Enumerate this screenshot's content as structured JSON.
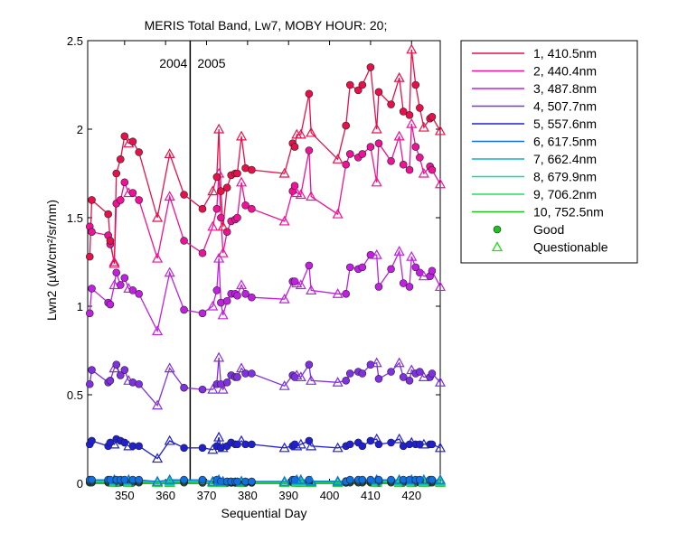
{
  "chart_data": {
    "type": "line",
    "title": "MERIS Total Band, Lw7, MOBY HOUR: 20;",
    "xlabel": "Sequential Day",
    "ylabel": "Lwn2 (µW/cm²/sr/nm)",
    "xlim": [
      341,
      427
    ],
    "ylim": [
      0,
      2.5
    ],
    "xticks": [
      350,
      360,
      370,
      380,
      390,
      400,
      410,
      420
    ],
    "yticks": [
      0,
      0.5,
      1,
      1.5,
      2,
      2.5
    ],
    "grid": false,
    "legend_position": "outside-right",
    "year_divider": {
      "x": 366,
      "labels": [
        "2004",
        "2005"
      ]
    },
    "x": [
      341.5,
      342,
      346,
      346.5,
      347.5,
      348,
      349,
      350,
      351,
      352,
      353.5,
      358,
      361,
      364.5,
      369,
      371.5,
      372.5,
      373,
      373.5,
      374,
      375,
      376,
      377,
      377.5,
      378.5,
      379.5,
      381,
      389,
      391,
      391.5,
      392,
      393,
      395,
      395.5,
      402,
      404,
      405,
      407,
      408,
      410,
      411.5,
      412,
      415,
      417,
      418,
      419.5,
      420,
      421,
      422,
      423,
      424.5,
      425,
      427
    ],
    "status": [
      "g",
      "g",
      "g",
      "g",
      "q",
      "g",
      "g",
      "g",
      "q",
      "g",
      "g",
      "q",
      "q",
      "g",
      "g",
      "q",
      "g",
      "q",
      "g",
      "q",
      "g",
      "g",
      "g",
      "g",
      "q",
      "g",
      "g",
      "q",
      "g",
      "g",
      "q",
      "q",
      "g",
      "q",
      "q",
      "g",
      "g",
      "g",
      "g",
      "g",
      "q",
      "g",
      "g",
      "q",
      "g",
      "g",
      "q",
      "g",
      "g",
      "q",
      "g",
      "g",
      "q"
    ],
    "series": [
      {
        "name": "1, 410.5nm",
        "color": "#e8104a",
        "values": [
          1.28,
          1.6,
          1.52,
          1.37,
          1.24,
          1.75,
          1.83,
          1.96,
          1.92,
          1.93,
          1.87,
          1.5,
          1.86,
          1.63,
          1.55,
          1.65,
          1.73,
          2.0,
          1.65,
          1.45,
          1.67,
          1.74,
          1.75,
          1.75,
          1.96,
          1.78,
          1.77,
          1.75,
          1.92,
          1.9,
          1.97,
          1.97,
          2.2,
          1.98,
          1.83,
          2.02,
          2.25,
          2.22,
          2.25,
          2.35,
          2.0,
          2.21,
          2.14,
          2.29,
          2.1,
          2.08,
          2.45,
          2.25,
          2.12,
          2.01,
          2.06,
          2.07,
          1.99
        ]
      },
      {
        "name": "2, 440.4nm",
        "color": "#f0109a",
        "values": [
          1.45,
          1.42,
          1.4,
          1.35,
          1.25,
          1.58,
          1.6,
          1.7,
          1.64,
          1.64,
          1.6,
          1.27,
          1.62,
          1.37,
          1.3,
          1.45,
          1.55,
          1.75,
          1.5,
          1.3,
          1.42,
          1.48,
          1.49,
          1.5,
          1.7,
          1.57,
          1.55,
          1.48,
          1.65,
          1.68,
          1.64,
          1.63,
          1.88,
          1.62,
          1.52,
          1.8,
          1.86,
          1.84,
          1.86,
          1.9,
          1.7,
          1.92,
          1.82,
          1.96,
          1.8,
          1.77,
          2.03,
          1.9,
          1.84,
          1.75,
          1.79,
          1.77,
          1.69
        ]
      },
      {
        "name": "3, 487.8nm",
        "color": "#c020e0",
        "values": [
          0.96,
          1.1,
          1.02,
          1.01,
          1.12,
          1.19,
          1.12,
          1.16,
          1.1,
          1.09,
          1.07,
          0.86,
          1.19,
          0.98,
          0.96,
          1.0,
          1.09,
          1.27,
          1.02,
          0.95,
          1.03,
          1.07,
          1.07,
          1.06,
          1.12,
          1.07,
          1.05,
          1.04,
          1.14,
          1.14,
          1.13,
          1.12,
          1.23,
          1.09,
          1.07,
          1.07,
          1.22,
          1.21,
          1.22,
          1.29,
          1.29,
          1.11,
          1.21,
          1.31,
          1.13,
          1.11,
          1.28,
          1.22,
          1.19,
          1.17,
          1.17,
          1.2,
          1.11
        ]
      },
      {
        "name": "4, 507.7nm",
        "color": "#8030e0",
        "values": [
          0.56,
          0.64,
          0.57,
          0.58,
          0.65,
          0.67,
          0.61,
          0.64,
          0.58,
          0.57,
          0.56,
          0.44,
          0.65,
          0.54,
          0.53,
          0.53,
          0.56,
          0.71,
          0.56,
          0.53,
          0.57,
          0.61,
          0.6,
          0.6,
          0.65,
          0.62,
          0.62,
          0.55,
          0.61,
          0.6,
          0.61,
          0.6,
          0.67,
          0.58,
          0.57,
          0.58,
          0.62,
          0.63,
          0.62,
          0.67,
          0.68,
          0.59,
          0.63,
          0.68,
          0.6,
          0.58,
          0.64,
          0.62,
          0.63,
          0.6,
          0.6,
          0.62,
          0.57
        ]
      },
      {
        "name": "5, 557.6nm",
        "color": "#2020d0",
        "values": [
          0.22,
          0.24,
          0.21,
          0.23,
          0.22,
          0.25,
          0.24,
          0.23,
          0.21,
          0.21,
          0.21,
          0.14,
          0.24,
          0.2,
          0.2,
          0.19,
          0.21,
          0.26,
          0.2,
          0.2,
          0.21,
          0.23,
          0.22,
          0.22,
          0.24,
          0.22,
          0.22,
          0.2,
          0.21,
          0.22,
          0.21,
          0.22,
          0.24,
          0.21,
          0.2,
          0.21,
          0.22,
          0.23,
          0.21,
          0.24,
          0.25,
          0.22,
          0.23,
          0.25,
          0.21,
          0.22,
          0.23,
          0.22,
          0.22,
          0.22,
          0.22,
          0.22,
          0.2
        ]
      },
      {
        "name": "6, 617.5nm",
        "color": "#1070e0",
        "values": [
          0.02,
          0.02,
          0.02,
          0.02,
          0.02,
          0.02,
          0.02,
          0.02,
          0.02,
          0.02,
          0.02,
          0.01,
          0.02,
          0.02,
          0.02,
          0.01,
          0.02,
          0.02,
          0.01,
          0.01,
          0.01,
          0.01,
          0.01,
          0.01,
          0.01,
          0.01,
          0.01,
          0.01,
          0.02,
          0.02,
          0.02,
          0.02,
          0.02,
          0.01,
          0.01,
          0.01,
          0.02,
          0.02,
          0.02,
          0.02,
          0.02,
          0.02,
          0.02,
          0.02,
          0.02,
          0.02,
          0.02,
          0.02,
          0.02,
          0.02,
          0.02,
          0.02,
          0.02
        ]
      },
      {
        "name": "7, 662.4nm",
        "color": "#10b0c8",
        "values": [
          0.015,
          0.015,
          0.015,
          0.015,
          0.015,
          0.015,
          0.015,
          0.015,
          0.015,
          0.015,
          0.015,
          0.01,
          0.015,
          0.015,
          0.012,
          0.01,
          0.012,
          0.015,
          0.01,
          0.01,
          0.01,
          0.01,
          0.01,
          0.01,
          0.012,
          0.01,
          0.01,
          0.01,
          0.015,
          0.015,
          0.015,
          0.015,
          0.015,
          0.012,
          0.012,
          0.012,
          0.015,
          0.015,
          0.015,
          0.015,
          0.015,
          0.015,
          0.015,
          0.015,
          0.015,
          0.015,
          0.015,
          0.015,
          0.015,
          0.015,
          0.015,
          0.015,
          0.015
        ]
      },
      {
        "name": "8, 679.9nm",
        "color": "#10d8b0",
        "values": [
          0.012,
          0.012,
          0.012,
          0.012,
          0.012,
          0.012,
          0.012,
          0.012,
          0.012,
          0.012,
          0.012,
          0.008,
          0.012,
          0.012,
          0.01,
          0.008,
          0.01,
          0.012,
          0.008,
          0.008,
          0.008,
          0.008,
          0.008,
          0.008,
          0.01,
          0.008,
          0.008,
          0.008,
          0.012,
          0.012,
          0.012,
          0.012,
          0.012,
          0.01,
          0.01,
          0.01,
          0.012,
          0.012,
          0.012,
          0.012,
          0.012,
          0.012,
          0.012,
          0.012,
          0.012,
          0.012,
          0.012,
          0.012,
          0.012,
          0.012,
          0.012,
          0.012,
          0.012
        ]
      },
      {
        "name": "9, 706.2nm",
        "color": "#20e060",
        "values": [
          0.008,
          0.008,
          0.008,
          0.008,
          0.008,
          0.008,
          0.008,
          0.008,
          0.008,
          0.008,
          0.008,
          0.005,
          0.008,
          0.008,
          0.006,
          0.005,
          0.006,
          0.008,
          0.005,
          0.005,
          0.005,
          0.005,
          0.005,
          0.005,
          0.006,
          0.005,
          0.005,
          0.005,
          0.008,
          0.008,
          0.008,
          0.008,
          0.008,
          0.006,
          0.006,
          0.006,
          0.008,
          0.008,
          0.008,
          0.008,
          0.008,
          0.008,
          0.008,
          0.008,
          0.008,
          0.008,
          0.008,
          0.008,
          0.008,
          0.008,
          0.008,
          0.008,
          0.008
        ]
      },
      {
        "name": "10, 752.5nm",
        "color": "#20c020",
        "values": [
          0.004,
          0.004,
          0.004,
          0.004,
          0.004,
          0.004,
          0.004,
          0.004,
          0.004,
          0.004,
          0.004,
          0.003,
          0.004,
          0.004,
          0.003,
          0.003,
          0.003,
          0.004,
          0.003,
          0.003,
          0.003,
          0.003,
          0.003,
          0.003,
          0.003,
          0.003,
          0.003,
          0.003,
          0.004,
          0.004,
          0.004,
          0.004,
          0.004,
          0.003,
          0.003,
          0.003,
          0.004,
          0.004,
          0.004,
          0.004,
          0.004,
          0.004,
          0.004,
          0.004,
          0.004,
          0.004,
          0.004,
          0.004,
          0.004,
          0.004,
          0.004,
          0.004,
          0.004
        ]
      }
    ],
    "markers": [
      {
        "name": "Good",
        "shape": "circle",
        "legend_color": "#20c020"
      },
      {
        "name": "Questionable",
        "shape": "triangle",
        "legend_color": "#20e020"
      }
    ]
  }
}
